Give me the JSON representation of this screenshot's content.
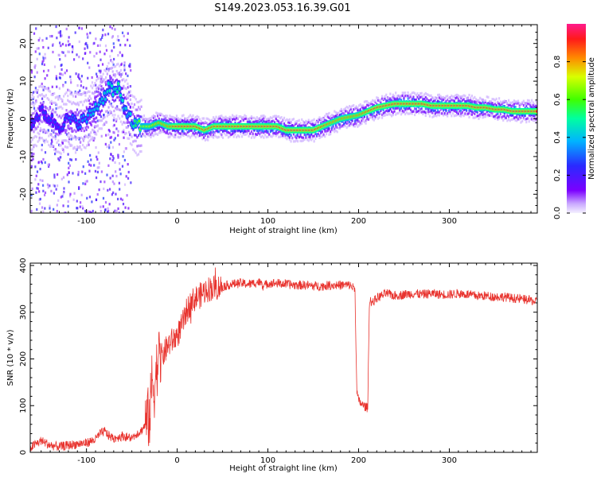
{
  "title": "S149.2023.053.16.39.G01",
  "colors": {
    "snr_line": "#e8332e",
    "ridge_palette": [
      "#7b00ff",
      "#3b3bff",
      "#00b4ff",
      "#00ff66",
      "#b8ff00",
      "#ff7a00",
      "#ff1a1a"
    ]
  },
  "chart_data": [
    {
      "type": "heatmap",
      "name": "spectrogram",
      "xlabel": "Height of straight line (km)",
      "ylabel": "Frequency (Hz)",
      "xlim": [
        -162,
        397
      ],
      "ylim": [
        -25,
        25
      ],
      "x_ticks": [
        -100,
        0,
        100,
        200,
        300
      ],
      "y_ticks": [
        -20,
        -10,
        0,
        10,
        20
      ],
      "colorbar": {
        "label": "Normalized spectral amplitude",
        "range": [
          0,
          1
        ],
        "ticks": [
          "0.0",
          "0.2",
          "0.4",
          "0.6",
          "0.8"
        ],
        "colormap": "rainbow (purple-blue-cyan-green-yellow-red-magenta)"
      },
      "ridge": {
        "x": [
          -160,
          -150,
          -140,
          -130,
          -120,
          -110,
          -100,
          -90,
          -80,
          -75,
          -70,
          -65,
          -60,
          -55,
          -50,
          -45,
          -40,
          -30,
          -20,
          -10,
          0,
          10,
          20,
          30,
          40,
          50,
          60,
          70,
          80,
          90,
          100,
          110,
          120,
          130,
          140,
          150,
          160,
          170,
          180,
          190,
          200,
          210,
          220,
          230,
          240,
          250,
          260,
          270,
          280,
          290,
          300,
          310,
          320,
          330,
          340,
          350,
          360,
          370,
          380,
          390,
          397
        ],
        "frequency": [
          -1,
          2,
          0,
          -2,
          0,
          -1,
          0,
          3,
          6,
          9,
          7,
          8,
          4,
          2,
          -1,
          -2,
          -2,
          -2,
          -1,
          -2,
          -2,
          -2,
          -2,
          -3,
          -2,
          -2,
          -2,
          -2,
          -2,
          -2,
          -2,
          -2,
          -3,
          -3,
          -3,
          -3,
          -2,
          -1,
          0,
          0.5,
          1,
          2,
          3,
          3.5,
          4,
          4,
          4,
          4,
          3.5,
          3.5,
          3.5,
          3.5,
          3.5,
          3,
          3,
          2.5,
          2.5,
          2,
          2,
          2,
          2
        ],
        "amplitude": [
          0.3,
          0.3,
          0.3,
          0.3,
          0.35,
          0.35,
          0.4,
          0.45,
          0.45,
          0.5,
          0.5,
          0.55,
          0.5,
          0.45,
          0.5,
          0.6,
          0.7,
          0.75,
          0.8,
          0.85,
          0.95,
          0.95,
          0.95,
          0.9,
          0.9,
          0.95,
          0.95,
          0.95,
          0.95,
          0.95,
          0.95,
          0.95,
          0.95,
          0.95,
          0.95,
          0.95,
          0.9,
          0.85,
          0.85,
          0.85,
          0.85,
          0.9,
          0.95,
          0.95,
          0.95,
          0.95,
          0.95,
          0.95,
          0.95,
          0.95,
          0.95,
          0.95,
          0.95,
          0.95,
          0.95,
          0.95,
          0.95,
          0.95,
          0.95,
          0.95,
          0.95
        ]
      }
    },
    {
      "type": "line",
      "name": "snr",
      "xlabel": "Height of straight line (km)",
      "ylabel": "SNR (10 * v/v)",
      "xlim": [
        -162,
        397
      ],
      "ylim": [
        0,
        405
      ],
      "x_ticks": [
        -100,
        0,
        100,
        200,
        300
      ],
      "y_ticks": [
        0,
        100,
        200,
        300,
        400
      ],
      "series": [
        {
          "x": [
            -162,
            -150,
            -140,
            -130,
            -120,
            -110,
            -100,
            -90,
            -85,
            -80,
            -75,
            -70,
            -60,
            -50,
            -45,
            -40,
            -35,
            -30,
            -28,
            -25,
            -22,
            -20,
            -15,
            -10,
            -5,
            0,
            5,
            10,
            15,
            20,
            25,
            30,
            35,
            40,
            50,
            60,
            70,
            80,
            90,
            95,
            100,
            110,
            120,
            130,
            140,
            150,
            160,
            170,
            180,
            190,
            196,
            198,
            200,
            205,
            210,
            212,
            215,
            220,
            230,
            240,
            250,
            260,
            270,
            280,
            290,
            300,
            310,
            320,
            330,
            340,
            350,
            360,
            370,
            380,
            390,
            397
          ],
          "y": [
            10,
            25,
            15,
            12,
            15,
            18,
            20,
            28,
            40,
            45,
            35,
            30,
            35,
            30,
            40,
            45,
            60,
            80,
            150,
            140,
            190,
            200,
            210,
            230,
            240,
            250,
            270,
            300,
            320,
            330,
            335,
            345,
            350,
            352,
            355,
            360,
            362,
            360,
            365,
            355,
            362,
            362,
            360,
            358,
            358,
            356,
            356,
            358,
            358,
            358,
            350,
            130,
            110,
            100,
            95,
            330,
            320,
            330,
            340,
            335,
            338,
            340,
            338,
            340,
            338,
            338,
            340,
            338,
            335,
            335,
            333,
            333,
            330,
            328,
            325,
            322
          ]
        }
      ]
    }
  ]
}
